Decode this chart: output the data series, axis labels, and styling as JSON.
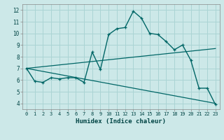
{
  "title": "",
  "xlabel": "Humidex (Indice chaleur)",
  "bg_color": "#cce8e8",
  "grid_color": "#aad4d4",
  "line_color": "#006666",
  "xlim": [
    -0.5,
    23.5
  ],
  "ylim": [
    3.5,
    12.5
  ],
  "xticks": [
    0,
    1,
    2,
    3,
    4,
    5,
    6,
    7,
    8,
    9,
    10,
    11,
    12,
    13,
    14,
    15,
    16,
    17,
    18,
    19,
    20,
    21,
    22,
    23
  ],
  "yticks": [
    4,
    5,
    6,
    7,
    8,
    9,
    10,
    11,
    12
  ],
  "line1_x": [
    0,
    1,
    2,
    3,
    4,
    5,
    6,
    7,
    8,
    9,
    10,
    11,
    12,
    13,
    14,
    15,
    16,
    17,
    18,
    19,
    20,
    21,
    22,
    23
  ],
  "line1_y": [
    7.0,
    5.9,
    5.8,
    6.2,
    6.1,
    6.2,
    6.2,
    5.8,
    8.4,
    6.9,
    9.9,
    10.4,
    10.5,
    11.9,
    11.3,
    10.0,
    9.9,
    9.3,
    8.6,
    9.0,
    7.7,
    5.3,
    5.3,
    3.9
  ],
  "line2_x": [
    0,
    23
  ],
  "line2_y": [
    7.0,
    8.7
  ],
  "line3_x": [
    0,
    23
  ],
  "line3_y": [
    7.0,
    4.0
  ],
  "tick_fontsize": 5.0,
  "xlabel_fontsize": 6.5
}
